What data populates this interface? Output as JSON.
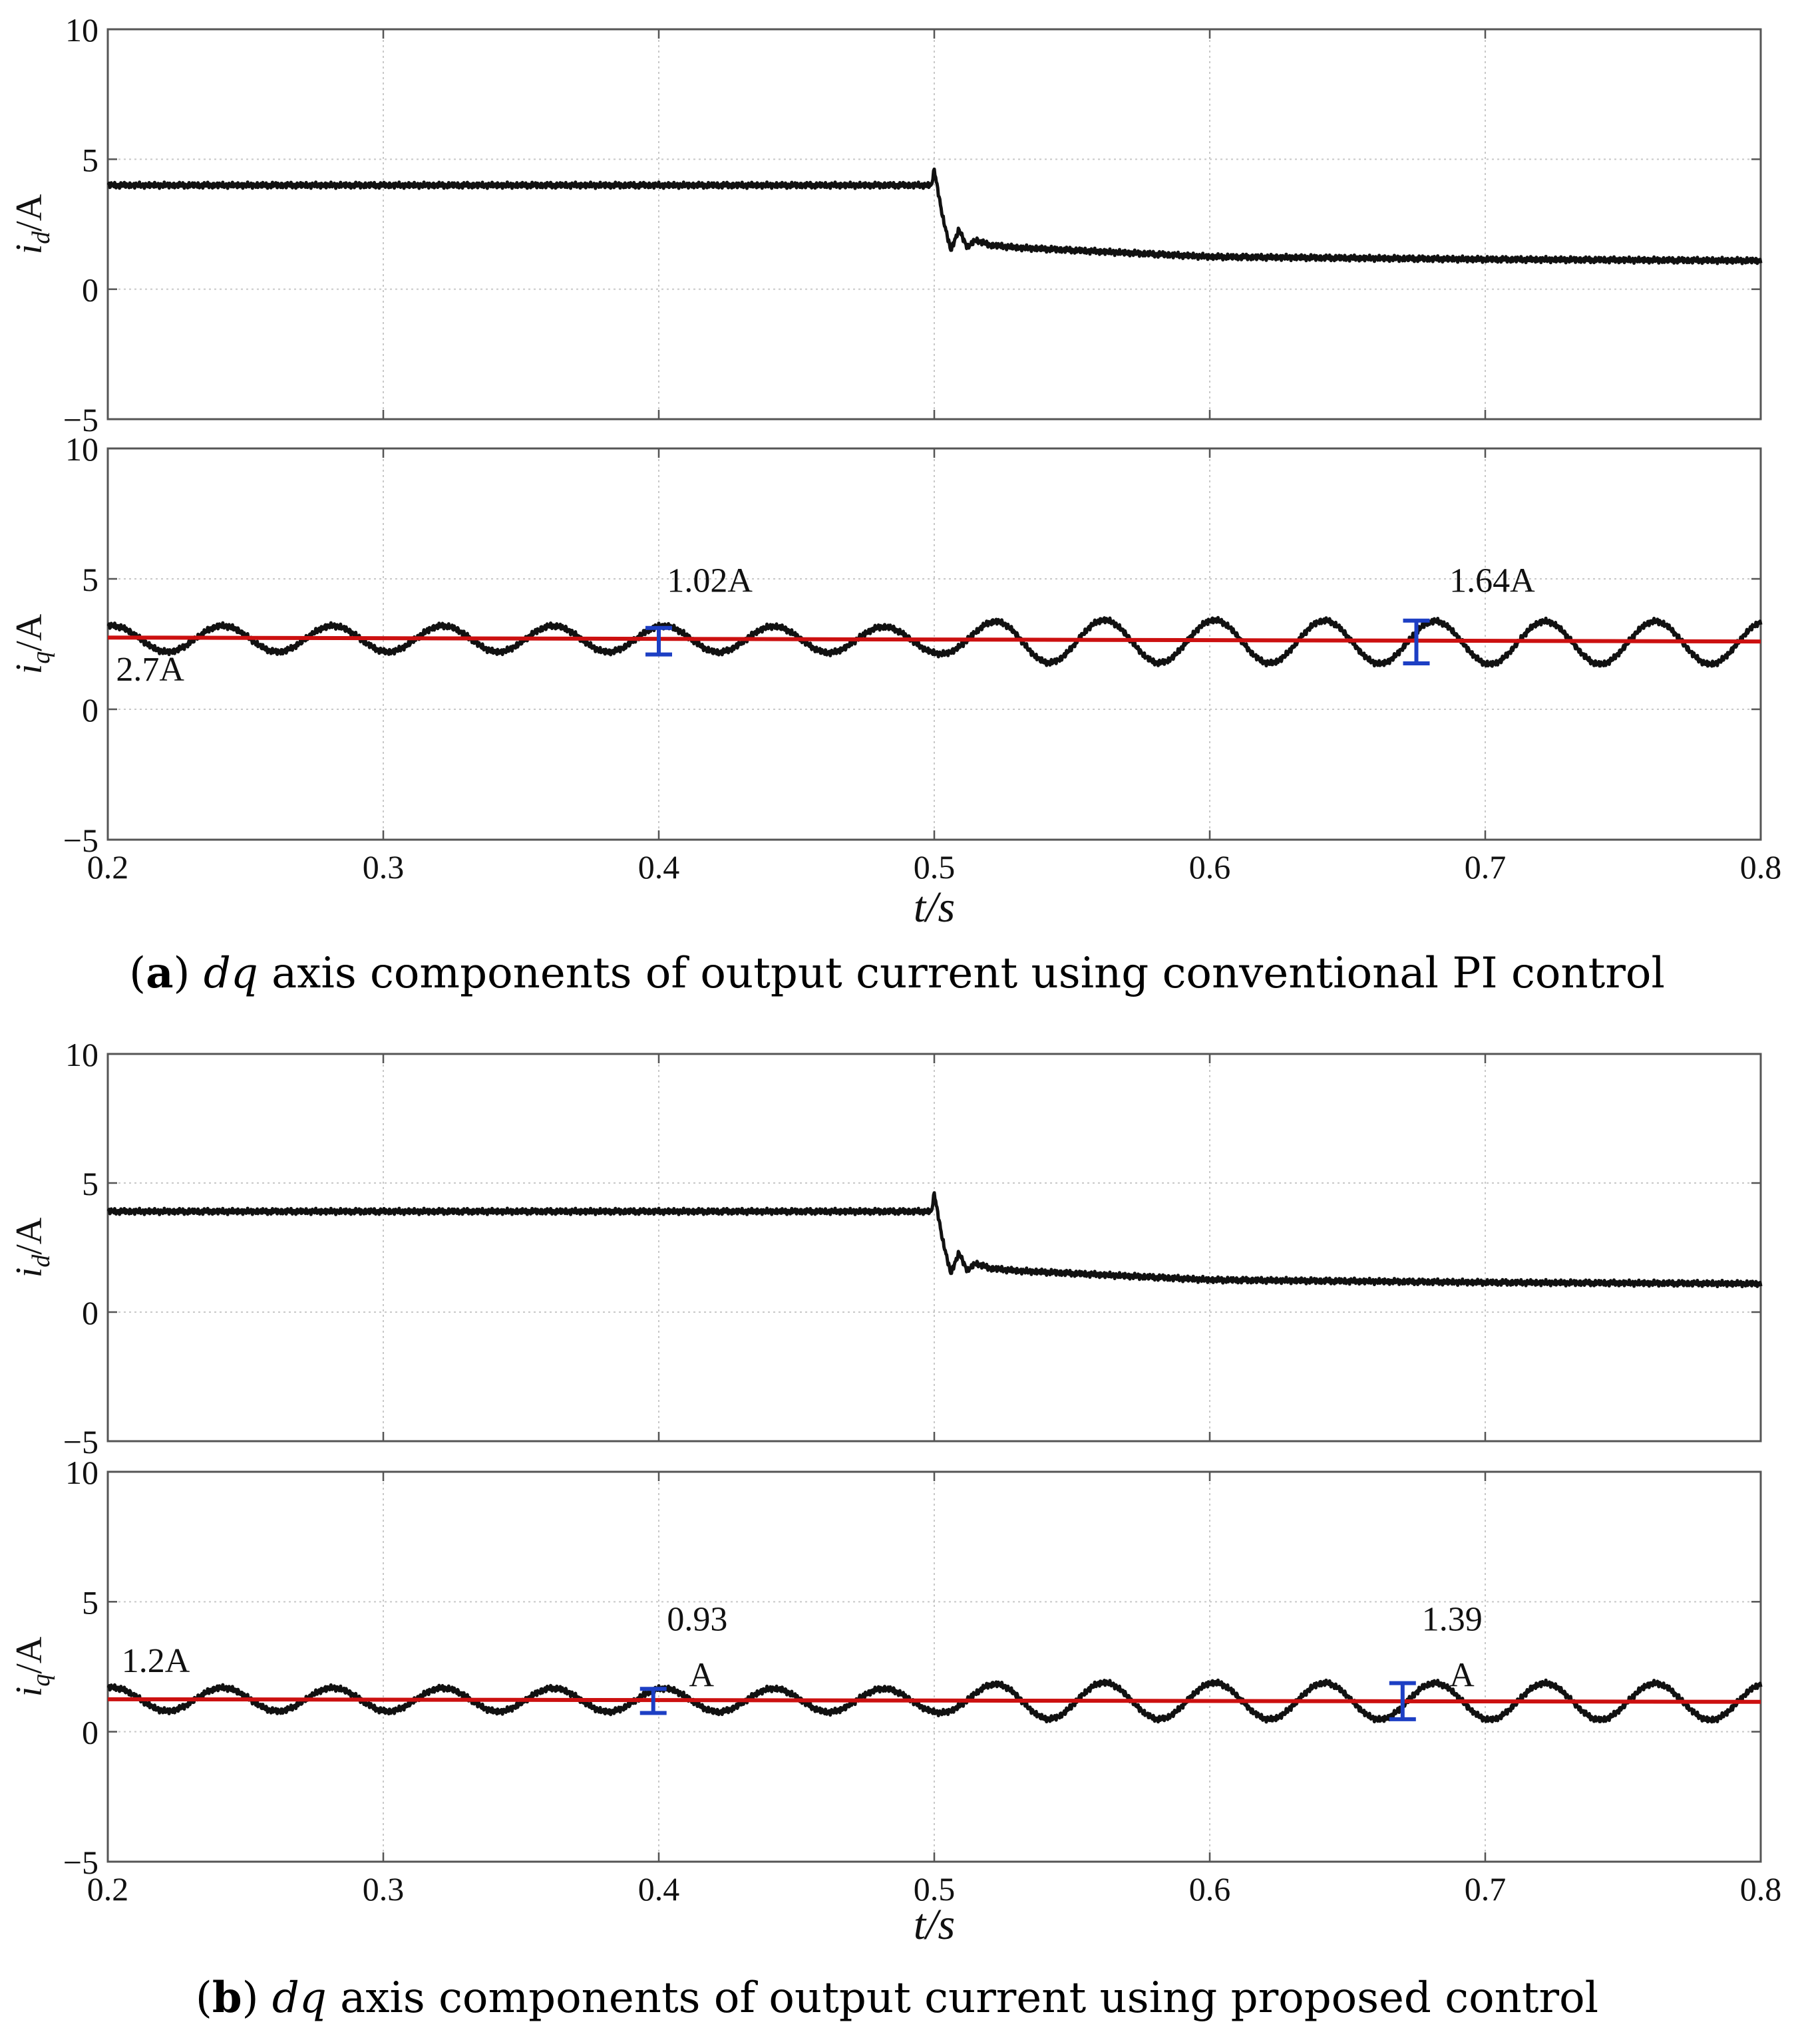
{
  "figure": {
    "colors": {
      "signal": "#111111",
      "reference": "#cc1010",
      "marker": "#1d3fc4",
      "grid": "#c8c8c8",
      "frame": "#555555"
    }
  },
  "captions": [
    {
      "letter": "a",
      "open": "(",
      "close": ")",
      "italic": "dq",
      "rest": " axis components of output current using conventional PI control"
    },
    {
      "letter": "b",
      "open": "(",
      "close": ")",
      "italic": "dq",
      "rest": " axis components of output current using proposed control"
    }
  ],
  "chart_data": [
    {
      "id": "a-id",
      "type": "line",
      "title": "",
      "xlabel": "",
      "ylabel": "i_d/A",
      "ylabel_main": "i",
      "ylabel_sub": "d",
      "ylabel_unit": "/A",
      "xlim": [
        0.2,
        0.8
      ],
      "ylim": [
        -5,
        10
      ],
      "yticks": [
        -5,
        0,
        5,
        10
      ],
      "ytick_labels": [
        "−5",
        "0",
        "5",
        "10"
      ],
      "xticks": [
        0.2,
        0.3,
        0.4,
        0.5,
        0.6,
        0.7,
        0.8
      ],
      "xtick_labels": [],
      "grid": true,
      "series": [
        {
          "name": "i_d",
          "role": "signal",
          "x": [
            0.2,
            0.3,
            0.4,
            0.499,
            0.5,
            0.503,
            0.506,
            0.509,
            0.512,
            0.515,
            0.52,
            0.53,
            0.55,
            0.6,
            0.7,
            0.8
          ],
          "y": [
            4.0,
            4.0,
            4.0,
            4.0,
            4.6,
            2.8,
            1.5,
            2.3,
            1.6,
            1.9,
            1.7,
            1.6,
            1.5,
            1.25,
            1.15,
            1.1
          ]
        }
      ],
      "annotations": []
    },
    {
      "id": "a-iq",
      "type": "line",
      "title": "",
      "xlabel": "t/s",
      "ylabel": "i_q/A",
      "ylabel_main": "i",
      "ylabel_sub": "q",
      "ylabel_unit": "/A",
      "xlim": [
        0.2,
        0.8
      ],
      "ylim": [
        -5,
        10
      ],
      "yticks": [
        -5,
        0,
        5,
        10
      ],
      "ytick_labels": [
        "−5",
        "0",
        "5",
        "10"
      ],
      "xticks": [
        0.2,
        0.3,
        0.4,
        0.5,
        0.6,
        0.7,
        0.8
      ],
      "xtick_labels": [
        "0.2",
        "0.3",
        "0.4",
        "0.5",
        "0.6",
        "0.7",
        "0.8"
      ],
      "grid": true,
      "series": [
        {
          "name": "i_q",
          "role": "signal",
          "x": [
            0.2,
            0.3,
            0.4,
            0.5,
            0.55,
            0.6,
            0.7,
            0.8
          ],
          "y": [
            2.7,
            2.7,
            2.7,
            2.65,
            2.6,
            2.6,
            2.55,
            2.55
          ],
          "ripple_period": 0.04,
          "ripple_amplitude_x": [
            0.2,
            0.5,
            0.53,
            0.8
          ],
          "ripple_amplitude_y": [
            0.5,
            0.5,
            0.82,
            0.82
          ]
        },
        {
          "name": "mean",
          "role": "reference",
          "x": [
            0.2,
            0.8
          ],
          "y": [
            2.75,
            2.6
          ]
        }
      ],
      "annotations": [
        {
          "text": "1.02A",
          "x": 0.4,
          "y_low": 2.1,
          "y_high": 3.12,
          "label_x": 0.403,
          "label_y": 4.5
        },
        {
          "text": "1.64A",
          "x": 0.675,
          "y_low": 1.76,
          "y_high": 3.4,
          "label_x": 0.687,
          "label_y": 4.5
        },
        {
          "text": "2.7A",
          "label_x": 0.203,
          "label_y": 1.1
        }
      ]
    },
    {
      "id": "b-id",
      "type": "line",
      "title": "",
      "xlabel": "",
      "ylabel": "i_d/A",
      "ylabel_main": "i",
      "ylabel_sub": "d",
      "ylabel_unit": "/A",
      "xlim": [
        0.2,
        0.8
      ],
      "ylim": [
        -5,
        10
      ],
      "yticks": [
        -5,
        0,
        5,
        10
      ],
      "ytick_labels": [
        "−5",
        "0",
        "5",
        "10"
      ],
      "xticks": [
        0.2,
        0.3,
        0.4,
        0.5,
        0.6,
        0.7,
        0.8
      ],
      "xtick_labels": [],
      "grid": true,
      "series": [
        {
          "name": "i_d",
          "role": "signal",
          "x": [
            0.2,
            0.3,
            0.4,
            0.499,
            0.5,
            0.503,
            0.506,
            0.509,
            0.512,
            0.515,
            0.52,
            0.53,
            0.55,
            0.6,
            0.7,
            0.8
          ],
          "y": [
            3.9,
            3.9,
            3.9,
            3.9,
            4.6,
            2.8,
            1.5,
            2.3,
            1.6,
            1.9,
            1.7,
            1.6,
            1.5,
            1.25,
            1.15,
            1.1
          ]
        }
      ],
      "annotations": []
    },
    {
      "id": "b-iq",
      "type": "line",
      "title": "",
      "xlabel": "t/s",
      "ylabel": "i_q/A",
      "ylabel_main": "i",
      "ylabel_sub": "q",
      "ylabel_unit": "/A",
      "xlim": [
        0.2,
        0.8
      ],
      "ylim": [
        -5,
        10
      ],
      "yticks": [
        -5,
        0,
        5,
        10
      ],
      "ytick_labels": [
        "−5",
        "0",
        "5",
        "10"
      ],
      "xticks": [
        0.2,
        0.3,
        0.4,
        0.5,
        0.6,
        0.7,
        0.8
      ],
      "xtick_labels": [
        "0.2",
        "0.3",
        "0.4",
        "0.5",
        "0.6",
        "0.7",
        "0.8"
      ],
      "grid": true,
      "series": [
        {
          "name": "i_q",
          "role": "signal",
          "x": [
            0.2,
            0.5,
            0.8
          ],
          "y": [
            1.25,
            1.2,
            1.15
          ],
          "ripple_period": 0.04,
          "ripple_amplitude_x": [
            0.2,
            0.5,
            0.53,
            0.8
          ],
          "ripple_amplitude_y": [
            0.45,
            0.45,
            0.7,
            0.7
          ]
        },
        {
          "name": "mean",
          "role": "reference",
          "x": [
            0.2,
            0.8
          ],
          "y": [
            1.25,
            1.15
          ]
        }
      ],
      "annotations": [
        {
          "text": "0.93",
          "text2": "A",
          "x": 0.398,
          "y_low": 0.72,
          "y_high": 1.65,
          "label_x": 0.403,
          "label_y": 3.9,
          "label2_x": 0.411,
          "label2_y": 1.75
        },
        {
          "text": "1.39",
          "text2": "A",
          "x": 0.67,
          "y_low": 0.48,
          "y_high": 1.87,
          "label_x": 0.677,
          "label_y": 3.9,
          "label2_x": 0.687,
          "label2_y": 1.75
        },
        {
          "text": "1.2A",
          "label_x": 0.205,
          "label_y": 2.3
        }
      ]
    }
  ]
}
